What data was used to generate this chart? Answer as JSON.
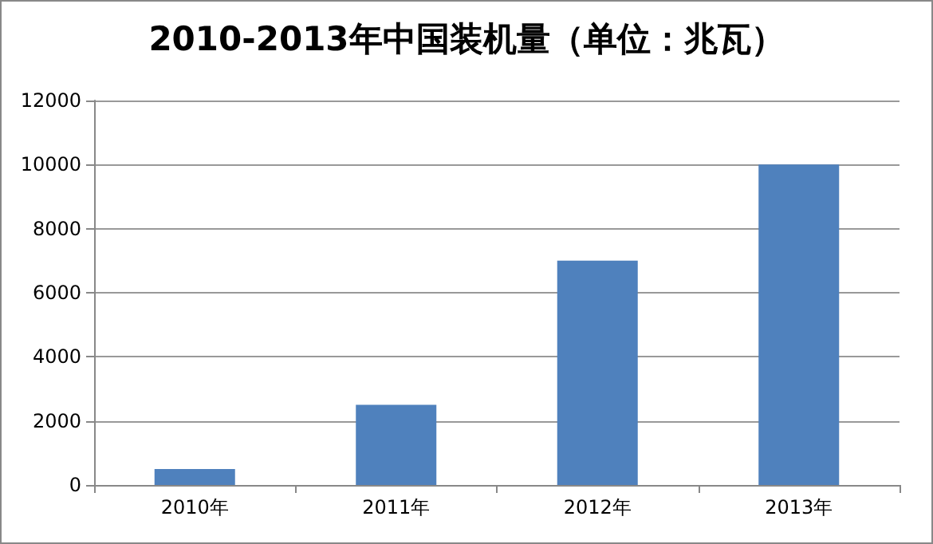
{
  "chart_data": {
    "type": "bar",
    "title": "2010-2013年中国装机量（单位：兆瓦）",
    "categories": [
      "2010年",
      "2011年",
      "2012年",
      "2013年"
    ],
    "values": [
      500,
      2500,
      7000,
      10000
    ],
    "color": "#4f81bd",
    "ylim": [
      0,
      12000
    ],
    "yticks": [
      0,
      2000,
      4000,
      6000,
      8000,
      10000,
      12000
    ],
    "grid": "y"
  }
}
